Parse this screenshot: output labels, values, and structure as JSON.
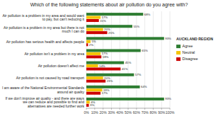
{
  "chart_data": {
    "type": "bar",
    "orientation": "horizontal",
    "title": "Which of the following statements about air pollution do you agree with?",
    "legend_title": "AUCKLAND REGION",
    "categories": [
      "Air pollution is a problem in my area and would want to pay, but can't reducing it",
      "Air pollution is a problem in my area but there is not much I can do",
      "Air pollution has serious health and affects people",
      "Air pollution isn't a problem in my area",
      "Air pollution doesn't affect me",
      "Air pollution is not caused by road transport",
      "I am aware of the National Environmental Standards around air quality",
      "If we don't improve air quality - and there are ways we can reduce and possible to find and\nalternatives are needed further work"
    ],
    "series": [
      {
        "name": "Agree",
        "color": "#2e7d32",
        "values": [
          68,
          55,
          93,
          65,
          45,
          57,
          64,
          93
        ],
        "value_labels": [
          "68%",
          "55%",
          "93%",
          "65%",
          "45%",
          "57%",
          "64%",
          "93%"
        ]
      },
      {
        "name": "Neutral",
        "color": "#f5c400",
        "values": [
          17,
          20,
          5,
          17,
          14,
          20,
          19,
          4
        ],
        "value_labels": [
          "17%",
          "20%",
          "5%",
          "17%",
          "14%",
          "20%",
          "19%",
          "4%"
        ]
      },
      {
        "name": "Disagree",
        "color": "#cc0000",
        "values": [
          15,
          25,
          2,
          18,
          41,
          23,
          17,
          3
        ],
        "value_labels": [
          "15%",
          "25%",
          "2%",
          "18%",
          "41%",
          "23%",
          "17%",
          "3%"
        ]
      }
    ],
    "xlim": [
      0,
      100
    ],
    "xticks": [
      {
        "value": 0,
        "label": "0%"
      },
      {
        "value": 10,
        "label": "10%"
      },
      {
        "value": 20,
        "label": "20%"
      },
      {
        "value": 30,
        "label": "30%"
      },
      {
        "value": 40,
        "label": "40%"
      },
      {
        "value": 50,
        "label": "50%"
      },
      {
        "value": 60,
        "label": "60%"
      },
      {
        "value": 70,
        "label": "70%"
      },
      {
        "value": 80,
        "label": "80%"
      },
      {
        "value": 90,
        "label": "90%"
      },
      {
        "value": 100,
        "label": "100%"
      }
    ],
    "grid": true,
    "data_labels": true,
    "legend": "right"
  }
}
